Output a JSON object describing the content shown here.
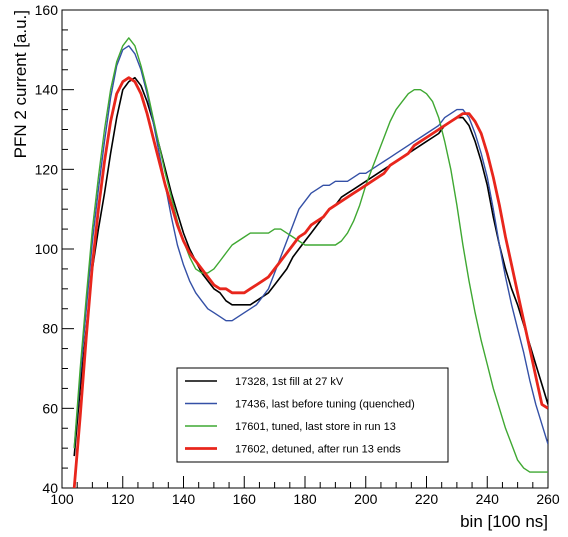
{
  "chart_data": {
    "type": "line",
    "xlabel": "bin [100 ns]",
    "ylabel": "PFN 2 current [a.u.]",
    "xlim": [
      100,
      260
    ],
    "ylim": [
      40,
      160
    ],
    "x_ticks": [
      100,
      120,
      140,
      160,
      180,
      200,
      220,
      240,
      260
    ],
    "y_ticks": [
      40,
      60,
      80,
      100,
      120,
      140,
      160
    ],
    "grid": false,
    "legend_position": "bottom-center",
    "series": [
      {
        "name": "17328, 1st fill at 27 kV",
        "color": "#000000",
        "x": [
          104,
          106,
          108,
          110,
          112,
          114,
          116,
          118,
          120,
          122,
          124,
          126,
          128,
          130,
          132,
          134,
          136,
          138,
          140,
          142,
          144,
          146,
          148,
          150,
          152,
          154,
          156,
          158,
          160,
          162,
          164,
          166,
          168,
          170,
          172,
          174,
          176,
          178,
          180,
          182,
          184,
          186,
          188,
          190,
          192,
          194,
          196,
          198,
          200,
          202,
          204,
          206,
          208,
          210,
          212,
          214,
          216,
          218,
          220,
          222,
          224,
          226,
          228,
          230,
          232,
          234,
          236,
          238,
          240,
          242,
          244,
          246,
          248,
          250,
          252,
          254,
          256,
          258,
          260
        ],
        "y": [
          48,
          65,
          80,
          95,
          105,
          114,
          124,
          133,
          140,
          142,
          143,
          141,
          137,
          132,
          126,
          120,
          114,
          109,
          104,
          100,
          97,
          94,
          92,
          90,
          89,
          87,
          86,
          86,
          86,
          86,
          87,
          88,
          89,
          91,
          93,
          95,
          98,
          100,
          102,
          104,
          106,
          108,
          110,
          111,
          113,
          114,
          115,
          116,
          117,
          118,
          119,
          120,
          121,
          122,
          123,
          124,
          125,
          126,
          127,
          128,
          129,
          131,
          132,
          133,
          133,
          131,
          127,
          122,
          116,
          108,
          101,
          95,
          90,
          86,
          81,
          76,
          71,
          66,
          61
        ]
      },
      {
        "name": "17436, last before tuning (quenched)",
        "color": "#3450a6",
        "x": [
          104,
          106,
          108,
          110,
          112,
          114,
          116,
          118,
          120,
          122,
          124,
          126,
          128,
          130,
          132,
          134,
          136,
          138,
          140,
          142,
          144,
          146,
          148,
          150,
          152,
          154,
          156,
          158,
          160,
          162,
          164,
          166,
          168,
          170,
          172,
          174,
          176,
          178,
          180,
          182,
          184,
          186,
          188,
          190,
          192,
          194,
          196,
          198,
          200,
          202,
          204,
          206,
          208,
          210,
          212,
          214,
          216,
          218,
          220,
          222,
          224,
          226,
          228,
          230,
          232,
          234,
          236,
          238,
          240,
          242,
          244,
          246,
          248,
          250,
          252,
          254,
          256,
          258,
          260
        ],
        "y": [
          50,
          68,
          85,
          102,
          115,
          127,
          138,
          146,
          150,
          151,
          149,
          145,
          139,
          132,
          124,
          116,
          108,
          101,
          96,
          92,
          89,
          87,
          85,
          84,
          83,
          82,
          82,
          83,
          84,
          85,
          86,
          88,
          90,
          94,
          98,
          102,
          106,
          110,
          112,
          114,
          115,
          116,
          116,
          117,
          117,
          117,
          118,
          119,
          119,
          120,
          121,
          122,
          123,
          124,
          125,
          126,
          127,
          128,
          129,
          130,
          131,
          133,
          134,
          135,
          135,
          133,
          129,
          124,
          118,
          110,
          101,
          93,
          86,
          80,
          74,
          67,
          61,
          56,
          51
        ]
      },
      {
        "name": "17601, tuned, last store in run 13",
        "color": "#3fa832",
        "x": [
          104,
          106,
          108,
          110,
          112,
          114,
          116,
          118,
          120,
          122,
          124,
          126,
          128,
          130,
          132,
          134,
          136,
          138,
          140,
          142,
          144,
          146,
          148,
          150,
          152,
          154,
          156,
          158,
          160,
          162,
          164,
          166,
          168,
          170,
          172,
          174,
          176,
          178,
          180,
          182,
          184,
          186,
          188,
          190,
          192,
          194,
          196,
          198,
          200,
          202,
          204,
          206,
          208,
          210,
          212,
          214,
          216,
          218,
          220,
          222,
          224,
          226,
          228,
          230,
          232,
          234,
          236,
          238,
          240,
          242,
          244,
          246,
          248,
          250,
          252,
          254,
          256,
          258,
          260
        ],
        "y": [
          50,
          70,
          88,
          105,
          118,
          130,
          140,
          147,
          151,
          153,
          151,
          146,
          140,
          133,
          126,
          119,
          113,
          107,
          102,
          98,
          95,
          94,
          94,
          95,
          97,
          99,
          101,
          102,
          103,
          104,
          104,
          104,
          104,
          105,
          105,
          104,
          103,
          102,
          101,
          101,
          101,
          101,
          101,
          101,
          102,
          104,
          107,
          111,
          116,
          120,
          124,
          128,
          132,
          135,
          137,
          139,
          140,
          140,
          139,
          137,
          133,
          127,
          120,
          111,
          101,
          92,
          84,
          77,
          71,
          65,
          60,
          55,
          51,
          47,
          45,
          44,
          44,
          44,
          44
        ]
      },
      {
        "name": "17602, detuned, after run 13 ends",
        "color": "#e8261c",
        "x": [
          104,
          106,
          108,
          110,
          112,
          114,
          116,
          118,
          120,
          122,
          124,
          126,
          128,
          130,
          132,
          134,
          136,
          138,
          140,
          142,
          144,
          146,
          148,
          150,
          152,
          154,
          156,
          158,
          160,
          162,
          164,
          166,
          168,
          170,
          172,
          174,
          176,
          178,
          180,
          182,
          184,
          186,
          188,
          190,
          192,
          194,
          196,
          198,
          200,
          202,
          204,
          206,
          208,
          210,
          212,
          214,
          216,
          218,
          220,
          222,
          224,
          226,
          228,
          230,
          232,
          234,
          236,
          238,
          240,
          242,
          244,
          246,
          248,
          250,
          252,
          254,
          256,
          258,
          260
        ],
        "y": [
          40,
          58,
          78,
          96,
          110,
          122,
          132,
          139,
          142,
          143,
          142,
          139,
          134,
          128,
          122,
          116,
          111,
          106,
          102,
          99,
          97,
          95,
          93,
          91,
          90,
          90,
          89,
          89,
          89,
          90,
          91,
          92,
          93,
          95,
          97,
          99,
          101,
          103,
          104,
          106,
          107,
          108,
          110,
          111,
          112,
          113,
          114,
          115,
          116,
          117,
          118,
          119,
          121,
          122,
          123,
          124,
          126,
          127,
          128,
          129,
          130,
          131,
          132,
          133,
          134,
          134,
          132,
          129,
          124,
          118,
          111,
          103,
          96,
          89,
          82,
          75,
          68,
          61,
          60
        ]
      }
    ]
  }
}
